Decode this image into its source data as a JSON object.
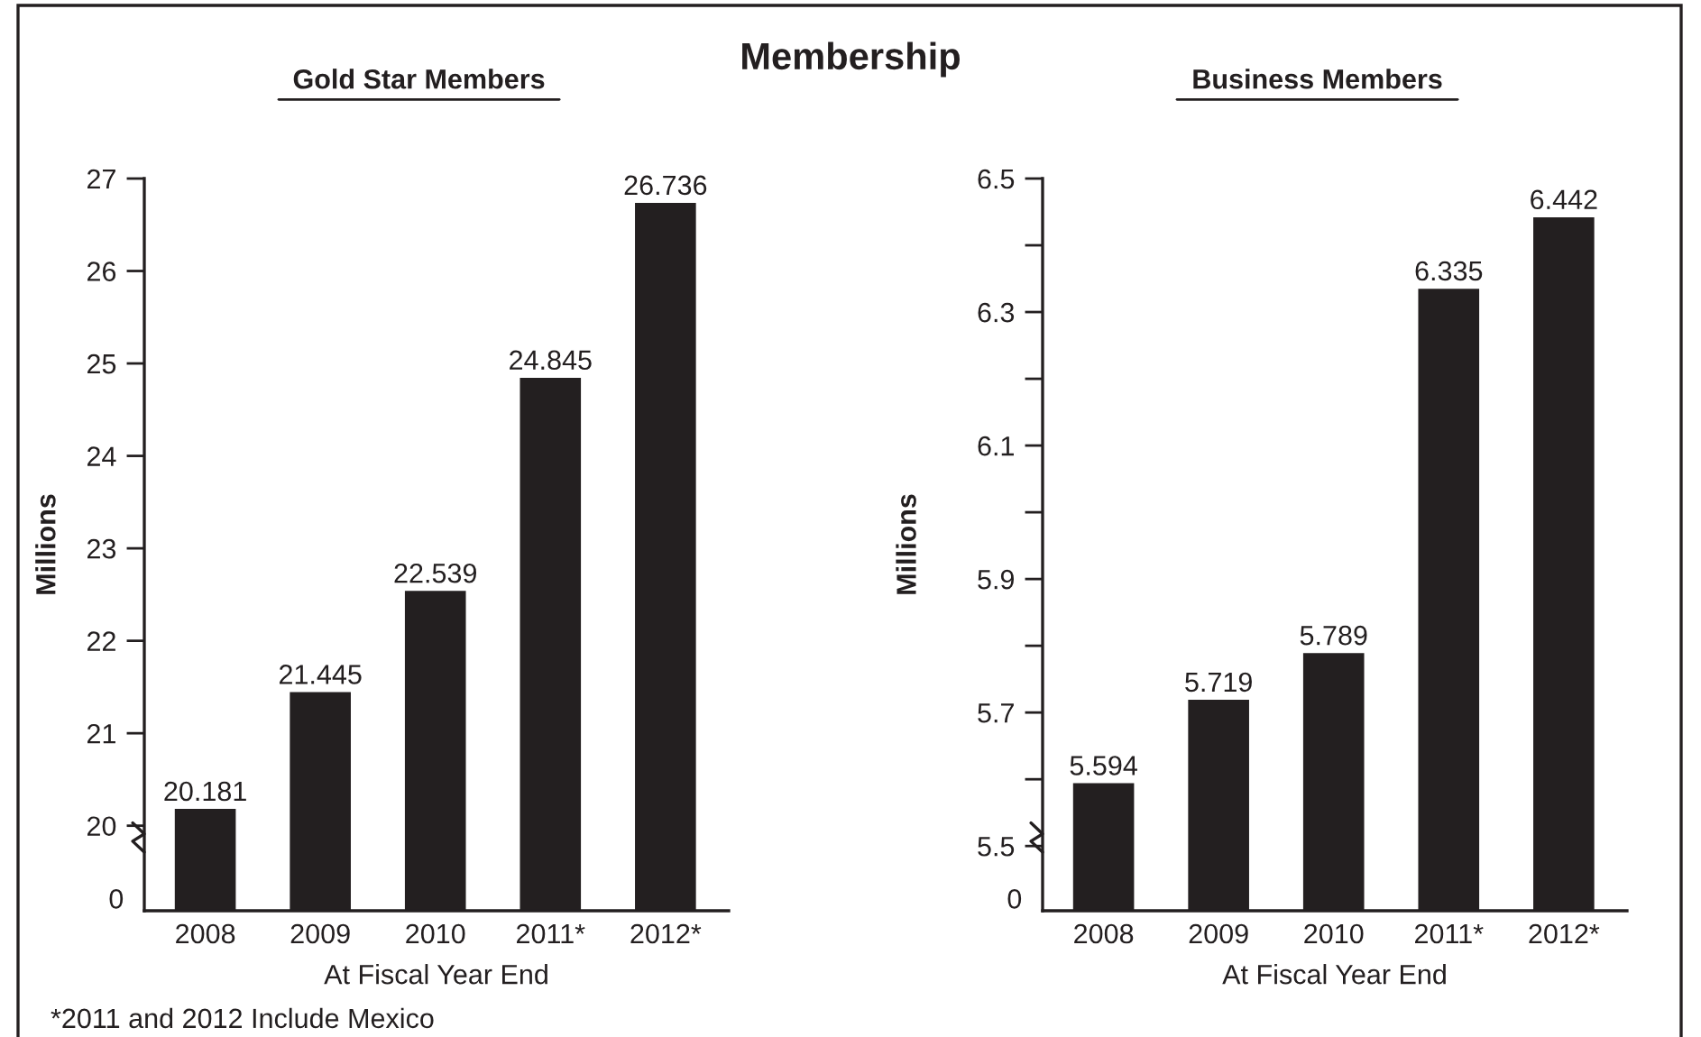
{
  "chart_data": [
    {
      "type": "bar",
      "title": "Membership",
      "subtitle": "Gold Star Members",
      "xlabel": "At Fiscal Year End",
      "ylabel": "Millions",
      "categories": [
        "2008",
        "2009",
        "2010",
        "2011*",
        "2012*"
      ],
      "values": [
        20.181,
        21.445,
        22.539,
        24.845,
        26.736
      ],
      "color": "#231f20",
      "ylim": [
        19.08,
        27
      ],
      "yticks": [
        20,
        21,
        22,
        23,
        24,
        25,
        26,
        27
      ],
      "data_labels": true,
      "grid": false,
      "annotations": [
        "0",
        "*2011 and 2012 Include Mexico"
      ]
    },
    {
      "type": "bar",
      "subtitle": "Business Members",
      "xlabel": "At Fiscal Year End",
      "ylabel": "Millions",
      "categories": [
        "2008",
        "2009",
        "2010",
        "2011*",
        "2012*"
      ],
      "values": [
        5.594,
        5.719,
        5.789,
        6.335,
        6.442
      ],
      "color": "#231f20",
      "ylim": [
        5.403,
        6.5
      ],
      "yticks": [
        {
          "value": 5.5,
          "label": "5.5"
        },
        {
          "value": 5.6,
          "label": null
        },
        {
          "value": 5.7,
          "label": "5.7"
        },
        {
          "value": 5.8,
          "label": null
        },
        {
          "value": 5.9,
          "label": "5.9"
        },
        {
          "value": 6.0,
          "label": null
        },
        {
          "value": 6.1,
          "label": "6.1"
        },
        {
          "value": 6.2,
          "label": null
        },
        {
          "value": 6.3,
          "label": "6.3"
        },
        {
          "value": 6.4,
          "label": null
        },
        {
          "value": 6.5,
          "label": "6.5"
        }
      ],
      "data_labels": true,
      "grid": false,
      "annotations": [
        "0"
      ]
    }
  ]
}
